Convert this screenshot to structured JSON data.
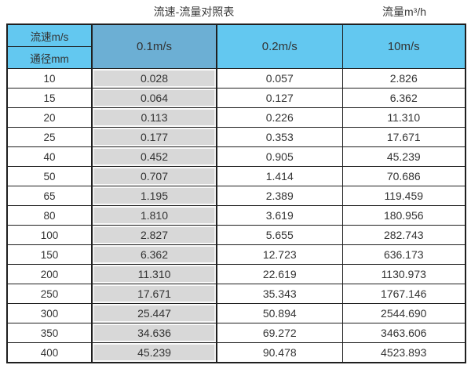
{
  "page": {
    "title": "流速-流量对照表",
    "unit_label": "流量m³/h"
  },
  "colors": {
    "header_cyan": "#63C8F0",
    "header_highlight_blue": "#6CAFD4",
    "column_highlight_gray": "#D8D8D8",
    "grid_border": "#1F1F1F",
    "text": "#333333"
  },
  "chart_data": {
    "type": "table",
    "title": "流速-流量对照表",
    "unit": "流量m³/h",
    "corner_labels": {
      "top": "流速m/s",
      "bottom": "通径mm"
    },
    "velocity_columns": [
      "0.1m/s",
      "0.2m/s",
      "10m/s"
    ],
    "highlighted_column": "0.1m/s",
    "rows": [
      {
        "diameter_mm": "10",
        "values": [
          "0.028",
          "0.057",
          "2.826"
        ]
      },
      {
        "diameter_mm": "15",
        "values": [
          "0.064",
          "0.127",
          "6.362"
        ]
      },
      {
        "diameter_mm": "20",
        "values": [
          "0.113",
          "0.226",
          "11.310"
        ]
      },
      {
        "diameter_mm": "25",
        "values": [
          "0.177",
          "0.353",
          "17.671"
        ]
      },
      {
        "diameter_mm": "40",
        "values": [
          "0.452",
          "0.905",
          "45.239"
        ]
      },
      {
        "diameter_mm": "50",
        "values": [
          "0.707",
          "1.414",
          "70.686"
        ]
      },
      {
        "diameter_mm": "65",
        "values": [
          "1.195",
          "2.389",
          "119.459"
        ]
      },
      {
        "diameter_mm": "80",
        "values": [
          "1.810",
          "3.619",
          "180.956"
        ]
      },
      {
        "diameter_mm": "100",
        "values": [
          "2.827",
          "5.655",
          "282.743"
        ]
      },
      {
        "diameter_mm": "150",
        "values": [
          "6.362",
          "12.723",
          "636.173"
        ]
      },
      {
        "diameter_mm": "200",
        "values": [
          "11.310",
          "22.619",
          "1130.973"
        ]
      },
      {
        "diameter_mm": "250",
        "values": [
          "17.671",
          "35.343",
          "1767.146"
        ]
      },
      {
        "diameter_mm": "300",
        "values": [
          "25.447",
          "50.894",
          "2544.690"
        ]
      },
      {
        "diameter_mm": "350",
        "values": [
          "34.636",
          "69.272",
          "3463.606"
        ]
      },
      {
        "diameter_mm": "400",
        "values": [
          "45.239",
          "90.478",
          "4523.893"
        ]
      }
    ]
  }
}
